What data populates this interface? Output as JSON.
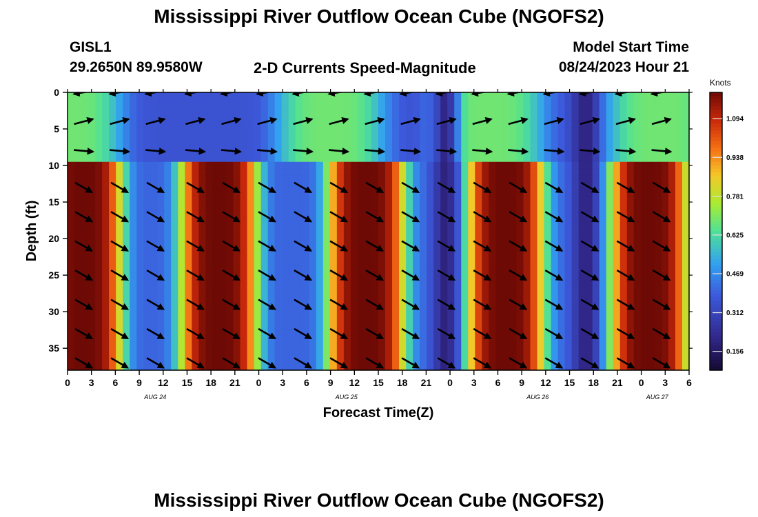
{
  "title": "Mississippi River Outflow Ocean Cube (NGOFS2)",
  "footer_title": "Mississippi River Outflow Ocean Cube (NGOFS2)",
  "station": {
    "id": "GISL1",
    "coords": "29.2650N  89.9580W"
  },
  "subtitle": "2-D Currents Speed-Magnitude",
  "model_start": {
    "label": "Model Start Time",
    "value": "08/24/2023 Hour 21"
  },
  "chart_data": {
    "type": "heatmap",
    "xlabel": "Forecast Time(Z)",
    "ylabel": "Depth (ft)",
    "x_range_hours": [
      0,
      78
    ],
    "y_range_ft": [
      0,
      38
    ],
    "y_inverted": true,
    "x_tick_labels": [
      "0",
      "3",
      "6",
      "9",
      "12",
      "15",
      "18",
      "21",
      "0",
      "3",
      "6",
      "9",
      "12",
      "15",
      "18",
      "21",
      "0",
      "3",
      "6",
      "9",
      "12",
      "15",
      "18",
      "21",
      "0",
      "3",
      "6"
    ],
    "y_tick_labels": [
      "0",
      "5",
      "10",
      "15",
      "20",
      "25",
      "30",
      "35"
    ],
    "date_labels": [
      {
        "text": "AUG 24",
        "hour": 11
      },
      {
        "text": "AUG 25",
        "hour": 35
      },
      {
        "text": "AUG 26",
        "hour": 59
      },
      {
        "text": "AUG 27",
        "hour": 74
      }
    ],
    "colorbar": {
      "unit": "Knots",
      "min": 0.08,
      "max": 1.2,
      "tick_labels": [
        "1.094",
        "0.938",
        "0.781",
        "0.625",
        "0.469",
        "0.312",
        "0.156"
      ]
    },
    "speed_layers": [
      {
        "name": "surface",
        "depth_ft": [
          0,
          9.5
        ],
        "peak_hours": [
          0,
          33,
          53,
          74.5
        ],
        "speed_base": 0.36,
        "speed_amplitude": 0.32,
        "peak_halfwidth_h": 7
      },
      {
        "name": "lower",
        "depth_ft": [
          9.5,
          38
        ],
        "peak_hours": [
          2,
          19,
          37.5,
          55,
          73
        ],
        "speed_base": 0.4,
        "speed_amplitude": 0.8,
        "peak_halfwidth_h": 5
      }
    ],
    "trough_hours": [
      47.5,
      65
    ],
    "trough_speed": 0.17,
    "arrow_sample_hours": [
      2,
      6.5,
      11,
      16,
      20.5,
      25,
      29.5,
      34,
      38.5,
      43,
      47.5,
      52,
      56.5,
      61,
      65.5,
      70,
      74.5
    ],
    "arrow_sample_depths_ft": [
      0,
      4,
      8,
      13,
      17,
      21,
      25,
      29,
      33,
      37
    ],
    "direction_rows": [
      {
        "depth_ft": 0,
        "angle_deg": 190
      },
      {
        "depth_ft": 4,
        "angle_deg": 15
      },
      {
        "depth_ft": 8,
        "angle_deg": 355
      },
      {
        "depth_ft": 13,
        "angle_deg": 330
      },
      {
        "depth_ft": 17,
        "angle_deg": 330
      },
      {
        "depth_ft": 21,
        "angle_deg": 330
      },
      {
        "depth_ft": 25,
        "angle_deg": 330
      },
      {
        "depth_ft": 29,
        "angle_deg": 330
      },
      {
        "depth_ft": 33,
        "angle_deg": 330
      },
      {
        "depth_ft": 37,
        "angle_deg": 330
      }
    ]
  }
}
